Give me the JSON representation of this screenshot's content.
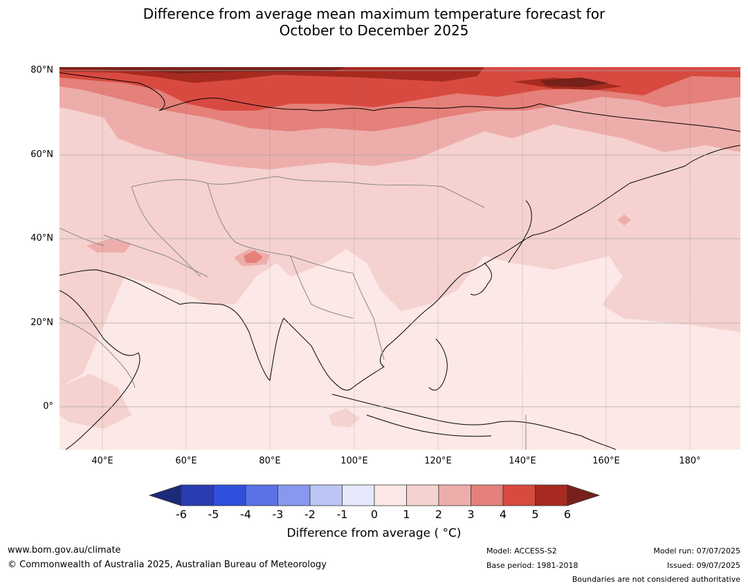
{
  "title": {
    "line1": "Difference from average mean maximum temperature forecast for",
    "line2": "October to December 2025"
  },
  "axes": {
    "lat_labels": [
      "80°N",
      "60°N",
      "40°N",
      "20°N",
      "0°"
    ],
    "lon_labels": [
      "40°E",
      "60°E",
      "80°E",
      "100°E",
      "120°E",
      "140°E",
      "160°E",
      "180°"
    ]
  },
  "colorbar": {
    "ticks": [
      "-6",
      "-5",
      "-4",
      "-3",
      "-2",
      "-1",
      "0",
      "1",
      "2",
      "3",
      "4",
      "5",
      "6"
    ],
    "colors": [
      "#1c2a7a",
      "#2a3db0",
      "#304fdc",
      "#5a72e6",
      "#8898ee",
      "#bcc6f4",
      "#e6e9fb",
      "#fce8e6",
      "#f5d2cf",
      "#edaeab",
      "#e5807a",
      "#d84a40",
      "#a72a20",
      "#78201a"
    ],
    "label": "Difference from average ( °C)"
  },
  "legend_colors": {
    "band_0_1": "#fce8e6",
    "band_1_2": "#f5d2cf",
    "band_2_3": "#edaeab",
    "band_3_4": "#e5807a",
    "band_4_5": "#d84a40",
    "band_5_6": "#a72a20",
    "band_6p": "#78201a"
  },
  "footer": {
    "website": "www.bom.gov.au/climate",
    "copyright": "© Commonwealth of Australia 2025, Australian Bureau of Meteorology",
    "model": "Model: ACCESS-S2",
    "base_period": "Base period: 1981-2018",
    "model_run": "Model run: 07/07/2025",
    "issued": "Issued: 09/07/2025",
    "disclaimer": "Boundaries are not considered authoritative"
  }
}
